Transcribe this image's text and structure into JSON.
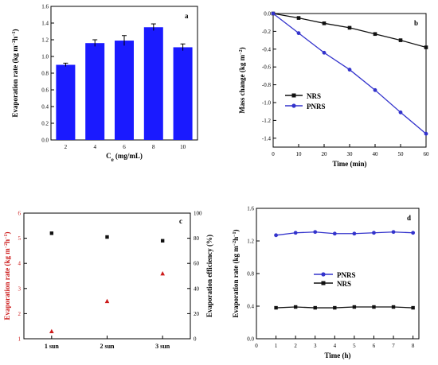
{
  "colors": {
    "axis": "#000000",
    "bar": "#1a1aff",
    "black_series": "#111111",
    "blue_series": "#3333cc",
    "red_series": "#cc1a1a"
  },
  "chart_data": [
    {
      "panel": "a",
      "type": "bar",
      "xlabel": "Ce (mg/mL)",
      "ylabel": "Evaporation rate (kg m⁻²h⁻¹)",
      "categories": [
        "2",
        "4",
        "6",
        "8",
        "10"
      ],
      "values": [
        0.9,
        1.16,
        1.19,
        1.35,
        1.11
      ],
      "errors": [
        0.02,
        0.04,
        0.06,
        0.04,
        0.04
      ],
      "ylim": [
        0,
        1.6
      ],
      "yticks": [
        "0.0",
        "0.2",
        "0.4",
        "0.6",
        "0.8",
        "1.0",
        "1.2",
        "1.4",
        "1.6"
      ]
    },
    {
      "panel": "b",
      "type": "line",
      "xlabel": "Time (min)",
      "ylabel": "Mass change (kg m⁻²)",
      "x": [
        0,
        10,
        20,
        30,
        40,
        50,
        60
      ],
      "xlim": [
        0,
        60
      ],
      "ylim": [
        -1.5,
        0
      ],
      "xticks": [
        "0",
        "10",
        "20",
        "30",
        "40",
        "50",
        "60"
      ],
      "yticks": [
        "0.0",
        "-0.2",
        "-0.4",
        "-0.6",
        "-0.8",
        "-1.0",
        "-1.2",
        "-1.4"
      ],
      "legend": "center-left",
      "series": [
        {
          "name": "NRS",
          "marker": "square",
          "values": [
            0,
            -0.05,
            -0.11,
            -0.16,
            -0.23,
            -0.3,
            -0.38
          ]
        },
        {
          "name": "PNRS",
          "marker": "circle",
          "values": [
            0,
            -0.22,
            -0.44,
            -0.63,
            -0.86,
            -1.11,
            -1.35
          ]
        }
      ]
    },
    {
      "panel": "c",
      "type": "scatter",
      "xlabel": "",
      "ylabel": "Evaporation rate (kg m⁻²h⁻¹)",
      "y2label": "Evaporation efficiency (%)",
      "categories": [
        "1 sun",
        "2 sun",
        "3 sun"
      ],
      "ylim": [
        1,
        6
      ],
      "y2lim": [
        0,
        100
      ],
      "yticks": [
        "1",
        "2",
        "3",
        "4",
        "5",
        "6"
      ],
      "y2ticks": [
        "0",
        "20",
        "40",
        "60",
        "80",
        "100"
      ],
      "series": [
        {
          "axis": "left",
          "marker": "triangle",
          "values": [
            1.3,
            2.5,
            3.6
          ]
        },
        {
          "axis": "right",
          "marker": "square",
          "values": [
            84,
            81,
            78
          ]
        }
      ]
    },
    {
      "panel": "d",
      "type": "line",
      "xlabel": "Time (h)",
      "ylabel": "Evaporation rate (kg m⁻²h⁻¹)",
      "x": [
        1,
        2,
        3,
        4,
        5,
        6,
        7,
        8
      ],
      "xlim": [
        0,
        8.3
      ],
      "ylim": [
        0,
        1.6
      ],
      "xticks": [
        "0",
        "1",
        "2",
        "3",
        "4",
        "5",
        "6",
        "7",
        "8"
      ],
      "yticks": [
        "0.0",
        "0.4",
        "0.8",
        "1.2",
        "1.6"
      ],
      "legend": "center",
      "series": [
        {
          "name": "PNRS",
          "marker": "circle",
          "values": [
            1.27,
            1.3,
            1.31,
            1.29,
            1.29,
            1.3,
            1.31,
            1.3
          ]
        },
        {
          "name": "NRS",
          "marker": "square",
          "values": [
            0.38,
            0.39,
            0.38,
            0.38,
            0.39,
            0.39,
            0.39,
            0.38
          ]
        }
      ]
    }
  ]
}
